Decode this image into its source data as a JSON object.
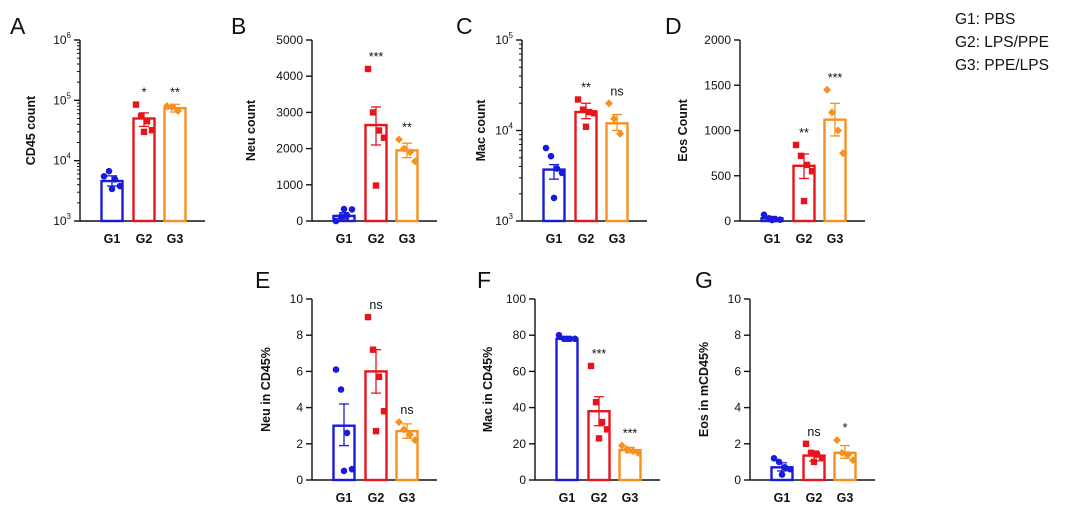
{
  "legend": [
    {
      "label": "G1: PBS"
    },
    {
      "label": "G2: LPS/PPE"
    },
    {
      "label": "G3: PPE/LPS"
    }
  ],
  "colors": {
    "G1": "#1a1adb",
    "G2": "#e8141c",
    "G3": "#f7901e",
    "axis": "#111111"
  },
  "chart_data": [
    {
      "panel": "A",
      "type": "bar",
      "ylabel": "CD45 count",
      "scale": "log",
      "ylim": [
        1000,
        1000000
      ],
      "yticks": [
        {
          "v": 1000,
          "b": "10",
          "e": "3"
        },
        {
          "v": 10000,
          "b": "10",
          "e": "4"
        },
        {
          "v": 100000,
          "b": "10",
          "e": "5"
        },
        {
          "v": 1000000,
          "b": "10",
          "e": "6"
        }
      ],
      "categories": [
        "G1",
        "G2",
        "G3"
      ],
      "values": [
        4600,
        50000,
        74000
      ],
      "error": [
        [
          3800,
          5600
        ],
        [
          37000,
          62000
        ],
        [
          64000,
          86000
        ]
      ],
      "points": [
        [
          5500,
          6700,
          4900,
          3800,
          3400
        ],
        [
          85000,
          55000,
          45000,
          32000,
          30000
        ],
        [
          80000,
          77000,
          67000
        ]
      ],
      "significance": [
        "",
        "*",
        "**"
      ]
    },
    {
      "panel": "B",
      "type": "bar",
      "ylabel": "Neu count",
      "scale": "linear",
      "ylim": [
        0,
        5000
      ],
      "yticks": [
        {
          "v": 0,
          "t": "0"
        },
        {
          "v": 1000,
          "t": "1000"
        },
        {
          "v": 2000,
          "t": "2000"
        },
        {
          "v": 3000,
          "t": "3000"
        },
        {
          "v": 4000,
          "t": "4000"
        },
        {
          "v": 5000,
          "t": "5000"
        }
      ],
      "categories": [
        "G1",
        "G2",
        "G3"
      ],
      "values": [
        140,
        2650,
        1950
      ],
      "error": [
        [
          50,
          230
        ],
        [
          2100,
          3150
        ],
        [
          1750,
          2150
        ]
      ],
      "points": [
        [
          0,
          120,
          150,
          320,
          330
        ],
        [
          4200,
          3000,
          2500,
          2300,
          980
        ],
        [
          2250,
          2000,
          1900,
          1650
        ]
      ],
      "significance": [
        "",
        "***",
        "**"
      ]
    },
    {
      "panel": "C",
      "type": "bar",
      "ylabel": "Mac count",
      "scale": "log",
      "ylim": [
        1000,
        100000
      ],
      "yticks": [
        {
          "v": 1000,
          "b": "10",
          "e": "3"
        },
        {
          "v": 10000,
          "b": "10",
          "e": "4"
        },
        {
          "v": 100000,
          "b": "10",
          "e": "5"
        }
      ],
      "categories": [
        "G1",
        "G2",
        "G3"
      ],
      "values": [
        3700,
        16000,
        12000
      ],
      "error": [
        [
          2900,
          4200
        ],
        [
          13500,
          20000
        ],
        [
          10000,
          15000
        ]
      ],
      "points": [
        [
          6400,
          5200,
          3800,
          3400,
          1800
        ],
        [
          22000,
          17000,
          16000,
          15500,
          11000
        ],
        [
          20000,
          13500,
          9200
        ]
      ],
      "significance": [
        "",
        "**",
        "ns"
      ]
    },
    {
      "panel": "D",
      "type": "bar",
      "ylabel": "Eos Count",
      "scale": "linear",
      "ylim": [
        0,
        2000
      ],
      "yticks": [
        {
          "v": 0,
          "t": "0"
        },
        {
          "v": 500,
          "t": "500"
        },
        {
          "v": 1000,
          "t": "1000"
        },
        {
          "v": 1500,
          "t": "1500"
        },
        {
          "v": 2000,
          "t": "2000"
        }
      ],
      "categories": [
        "G1",
        "G2",
        "G3"
      ],
      "values": [
        30,
        610,
        1120
      ],
      "error": [
        [
          15,
          50
        ],
        [
          470,
          740
        ],
        [
          940,
          1300
        ]
      ],
      "points": [
        [
          70,
          30,
          20,
          15,
          10
        ],
        [
          840,
          720,
          620,
          550,
          220
        ],
        [
          1450,
          1200,
          1000,
          750
        ]
      ],
      "significance": [
        "",
        "**",
        "***"
      ]
    },
    {
      "panel": "E",
      "type": "bar",
      "ylabel": "Neu in CD45%",
      "scale": "linear",
      "ylim": [
        0,
        10
      ],
      "yticks": [
        {
          "v": 0,
          "t": "0"
        },
        {
          "v": 2,
          "t": "2"
        },
        {
          "v": 4,
          "t": "4"
        },
        {
          "v": 6,
          "t": "6"
        },
        {
          "v": 8,
          "t": "8"
        },
        {
          "v": 10,
          "t": "10"
        }
      ],
      "categories": [
        "G1",
        "G2",
        "G3"
      ],
      "values": [
        3.0,
        6.0,
        2.7
      ],
      "error": [
        [
          1.9,
          4.2
        ],
        [
          4.8,
          7.2
        ],
        [
          2.3,
          3.1
        ]
      ],
      "points": [
        [
          6.1,
          5.0,
          2.6,
          0.6,
          0.5
        ],
        [
          9.0,
          7.2,
          5.7,
          3.8,
          2.7
        ],
        [
          3.2,
          2.8,
          2.5,
          2.2
        ]
      ],
      "significance": [
        "",
        "ns",
        "ns"
      ]
    },
    {
      "panel": "F",
      "type": "bar",
      "ylabel": "Mac in CD45%",
      "scale": "linear",
      "ylim": [
        0,
        100
      ],
      "yticks": [
        {
          "v": 0,
          "t": "0"
        },
        {
          "v": 20,
          "t": "20"
        },
        {
          "v": 40,
          "t": "40"
        },
        {
          "v": 60,
          "t": "60"
        },
        {
          "v": 80,
          "t": "80"
        },
        {
          "v": 100,
          "t": "100"
        }
      ],
      "categories": [
        "G1",
        "G2",
        "G3"
      ],
      "values": [
        78,
        38,
        16.5
      ],
      "error": [
        [
          77,
          79
        ],
        [
          30,
          46
        ],
        [
          15,
          18
        ]
      ],
      "points": [
        [
          80,
          78,
          78,
          78,
          78
        ],
        [
          63,
          43,
          32,
          28,
          23
        ],
        [
          19,
          17,
          16,
          15
        ]
      ],
      "significance": [
        "",
        "***",
        "***"
      ]
    },
    {
      "panel": "G",
      "type": "bar",
      "ylabel": "Eos in mCD45%",
      "scale": "linear",
      "ylim": [
        0,
        10
      ],
      "yticks": [
        {
          "v": 0,
          "t": "0"
        },
        {
          "v": 2,
          "t": "2"
        },
        {
          "v": 4,
          "t": "4"
        },
        {
          "v": 6,
          "t": "6"
        },
        {
          "v": 8,
          "t": "8"
        },
        {
          "v": 10,
          "t": "10"
        }
      ],
      "categories": [
        "G1",
        "G2",
        "G3"
      ],
      "values": [
        0.7,
        1.35,
        1.5
      ],
      "error": [
        [
          0.5,
          0.95
        ],
        [
          1.05,
          1.6
        ],
        [
          1.2,
          1.9
        ]
      ],
      "points": [
        [
          1.2,
          1.0,
          0.7,
          0.6,
          0.3
        ],
        [
          2.0,
          1.5,
          1.4,
          1.2,
          1.0
        ],
        [
          2.2,
          1.5,
          1.4,
          1.1
        ]
      ],
      "significance": [
        "",
        "ns",
        "*"
      ]
    }
  ]
}
